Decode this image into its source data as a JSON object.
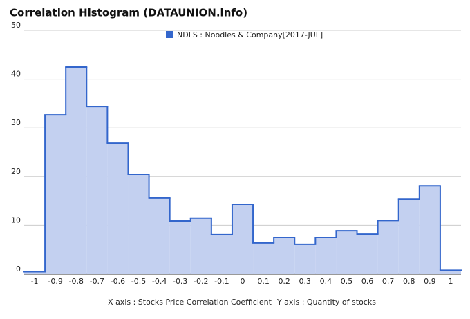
{
  "chart_data": {
    "type": "histogram",
    "title": "Correlation Histogram (DATAUNION.info)",
    "x_label": "X axis : Stocks Price Correlation Coefficient",
    "y_label": "Y axis : Quantity of stocks",
    "series_name": "NDLS : Noodles & Company[2017-JUL]",
    "color": "#3366cc",
    "fill": "#c3d0f0",
    "bins": [
      -1.05,
      -0.95,
      -0.85,
      -0.75,
      -0.65,
      -0.55,
      -0.45,
      -0.35,
      -0.25,
      -0.15,
      -0.05,
      0.05,
      0.15,
      0.25,
      0.35,
      0.45,
      0.55,
      0.65,
      0.75,
      0.85,
      0.95,
      1.05
    ],
    "counts": [
      0.5,
      32.7,
      42.5,
      34.4,
      26.9,
      20.4,
      15.6,
      10.9,
      11.5,
      8.1,
      14.3,
      6.4,
      7.5,
      6.1,
      7.5,
      8.9,
      8.2,
      11.0,
      15.4,
      18.1,
      0.8
    ],
    "xlim": [
      -1.05,
      1.05
    ],
    "xticks": [
      -1,
      -0.9,
      -0.8,
      -0.7,
      -0.6,
      -0.5,
      -0.4,
      -0.3,
      -0.2,
      -0.1,
      0,
      0.1,
      0.2,
      0.3,
      0.4,
      0.5,
      0.6,
      0.7,
      0.8,
      0.9,
      1
    ],
    "ylim": [
      0,
      50
    ],
    "yticks": [
      0,
      10,
      20,
      30,
      40,
      50
    ],
    "grid": true
  }
}
